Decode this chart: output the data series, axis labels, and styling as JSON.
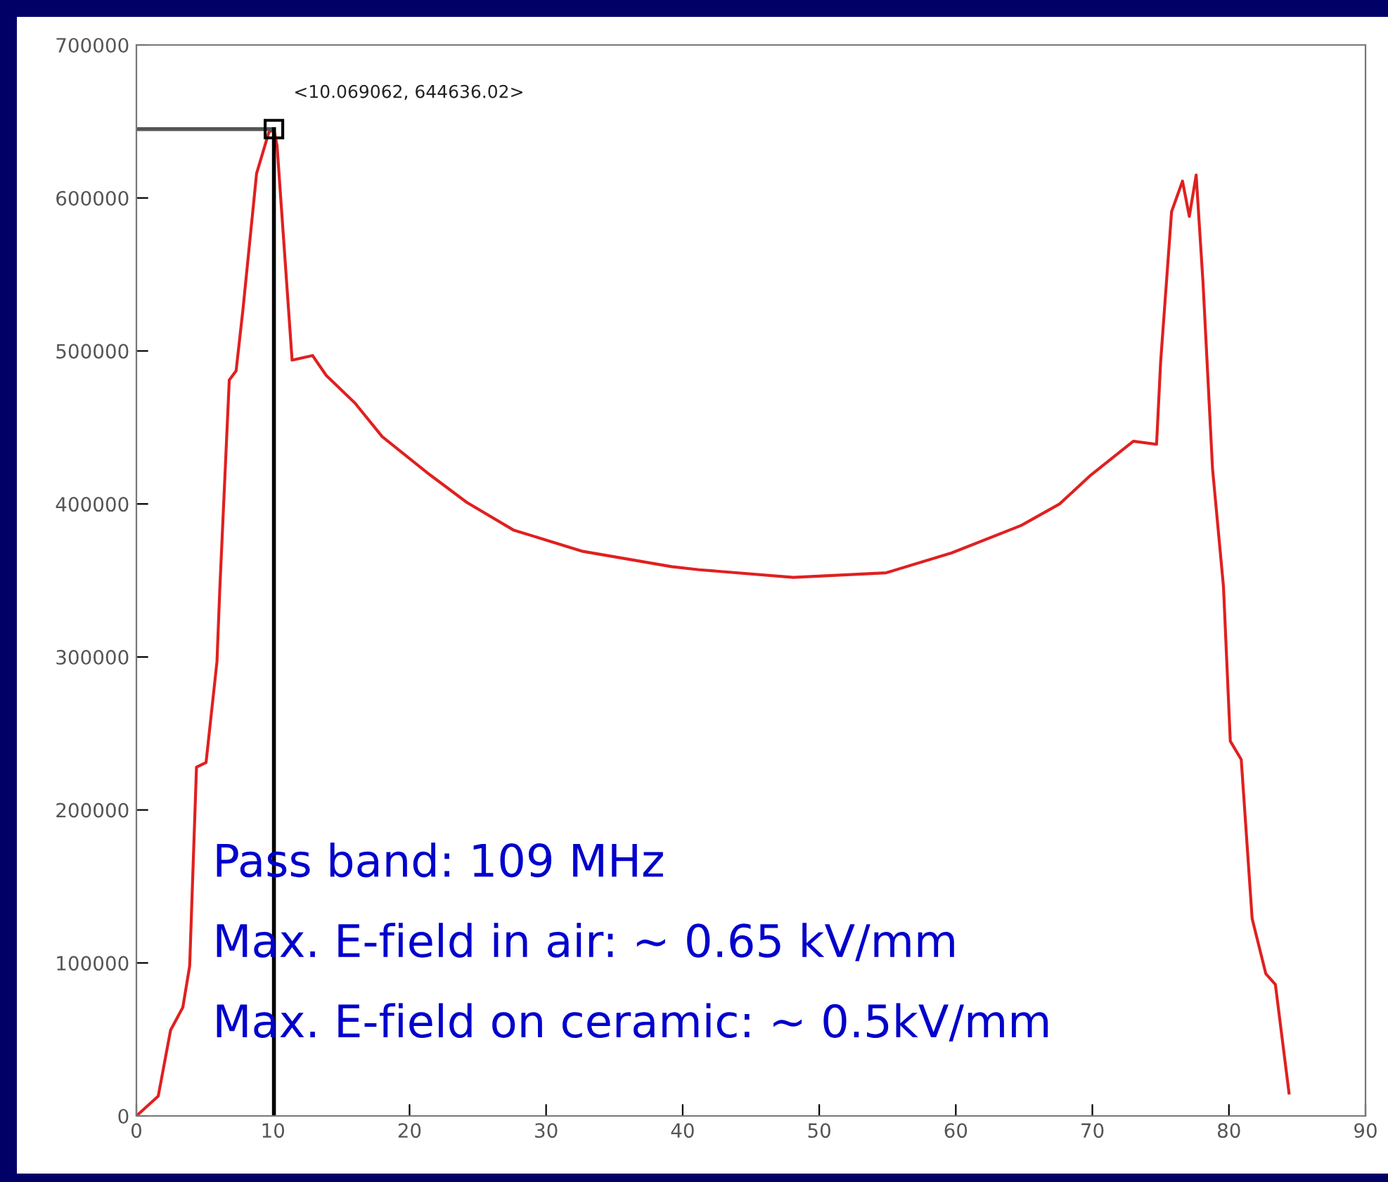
{
  "chart_data": {
    "type": "line",
    "x": [
      0,
      1.6,
      2.5,
      3.4,
      3.9,
      4.4,
      5.1,
      5.9,
      6.1,
      6.8,
      7.3,
      7.8,
      8.8,
      9.7,
      10.07,
      10.3,
      11.4,
      12.9,
      13.9,
      16.0,
      18.0,
      21.5,
      24.2,
      27.6,
      32.7,
      39.2,
      41.2,
      48.1,
      54.9,
      59.7,
      64.8,
      67.6,
      69.9,
      73.0,
      74.7,
      75.0,
      75.8,
      76.6,
      77.1,
      77.6,
      78.1,
      78.8,
      79.6,
      80.1,
      80.9,
      81.7,
      82.7,
      83.4,
      84.4
    ],
    "series": [
      {
        "color": "#e02020",
        "values": [
          0,
          13000,
          56000,
          71000,
          98000,
          228000,
          231000,
          297000,
          343000,
          481000,
          487000,
          527000,
          616000,
          643000,
          645000,
          634000,
          494000,
          497000,
          484000,
          466000,
          444000,
          419000,
          401000,
          383000,
          369000,
          359000,
          357000,
          352000,
          355000,
          368000,
          386000,
          400000,
          419000,
          441000,
          439000,
          493000,
          591000,
          611000,
          588000,
          615000,
          545000,
          423000,
          346000,
          245000,
          233000,
          129000,
          93000,
          86000,
          15000
        ]
      }
    ],
    "xlim": [
      0,
      90
    ],
    "xticks": [
      0,
      10,
      20,
      30,
      40,
      50,
      60,
      70,
      80,
      90
    ],
    "ylim": [
      0,
      700000
    ],
    "yticks": [
      0,
      100000,
      200000,
      300000,
      400000,
      500000,
      600000,
      700000
    ],
    "ref_lines": [
      {
        "axis": "y",
        "value": 645000,
        "color": "#555555"
      },
      {
        "axis": "x",
        "value": 10.07,
        "color": "#000000"
      }
    ],
    "grid": false,
    "legend": false,
    "marker": "none",
    "line_style": "solid",
    "annotations": [
      {
        "text": "<10.069062, 644636.02>",
        "x": 10.07,
        "y": 645000
      },
      "Pass band: 109 MHz",
      "Max. E-field in air: ~ 0.65 kV/mm",
      "Max. E-field on ceramic: ~ 0.5kV/mm"
    ]
  }
}
